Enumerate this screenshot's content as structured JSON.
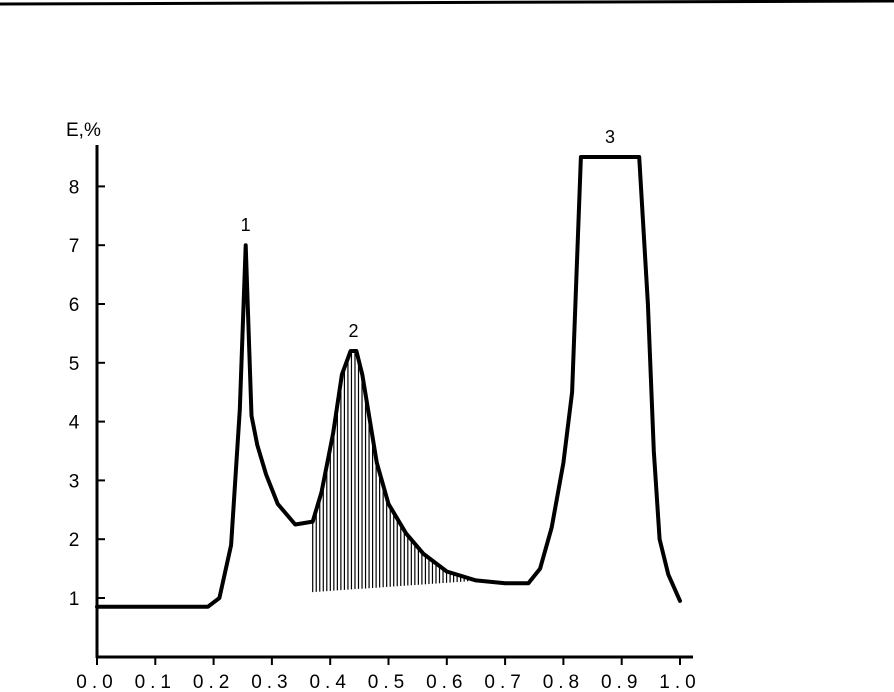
{
  "chart_data": {
    "type": "line",
    "title": "",
    "xlabel": "",
    "ylabel": "E,%",
    "xlim": [
      0.0,
      1.0
    ],
    "ylim": [
      0,
      8.6
    ],
    "x_tick_labels": [
      "0.0",
      "0.1",
      "0.2",
      "0.3",
      "0.4",
      "0.5",
      "0.6",
      "0.7",
      "0.8",
      "0.9",
      "1.0"
    ],
    "x_ticks": [
      0.0,
      0.1,
      0.2,
      0.3,
      0.4,
      0.5,
      0.6,
      0.7,
      0.8,
      0.9,
      1.0
    ],
    "y_ticks": [
      1,
      2,
      3,
      4,
      5,
      6,
      7,
      8
    ],
    "y_tick_labels": [
      "1",
      "2",
      "3",
      "4",
      "5",
      "6",
      "7",
      "8"
    ],
    "grid": false,
    "series": [
      {
        "x": [
          0.0,
          0.1,
          0.19,
          0.21,
          0.23,
          0.245,
          0.255,
          0.265,
          0.275,
          0.29,
          0.31,
          0.34,
          0.37,
          0.385,
          0.405,
          0.42,
          0.435,
          0.445,
          0.455,
          0.465,
          0.48,
          0.5,
          0.53,
          0.56,
          0.6,
          0.65,
          0.7,
          0.72,
          0.74,
          0.76,
          0.78,
          0.8,
          0.815,
          0.83,
          0.86,
          0.9,
          0.93,
          0.945,
          0.955,
          0.965,
          0.98,
          1.0
        ],
        "y": [
          0.85,
          0.85,
          0.85,
          1.0,
          1.9,
          4.2,
          7.0,
          4.1,
          3.6,
          3.1,
          2.6,
          2.25,
          2.3,
          2.8,
          3.8,
          4.8,
          5.2,
          5.2,
          4.8,
          4.2,
          3.3,
          2.6,
          2.1,
          1.75,
          1.45,
          1.3,
          1.25,
          1.25,
          1.25,
          1.5,
          2.2,
          3.3,
          4.5,
          8.5,
          8.5,
          8.5,
          8.5,
          6.0,
          3.5,
          2.0,
          1.4,
          0.95
        ]
      }
    ],
    "shaded_region": {
      "x_from": 0.37,
      "x_to": 0.66,
      "baseline_from": 1.1,
      "baseline_to": 1.3
    },
    "annotations": [
      {
        "text": "1",
        "x": 0.255,
        "y": 7.0
      },
      {
        "text": "2",
        "x": 0.44,
        "y": 5.2
      },
      {
        "text": "3",
        "x": 0.88,
        "y": 8.5
      }
    ]
  }
}
